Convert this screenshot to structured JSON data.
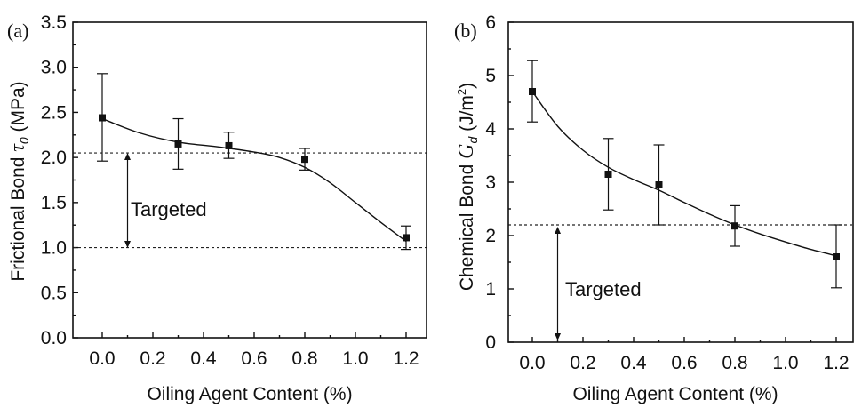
{
  "chart_data": [
    {
      "type": "scatter",
      "panel_label": "(a)",
      "xlabel": "Oiling Agent Content (%)",
      "ylabel_main": "Frictional Bond ",
      "ylabel_symbol": "τ",
      "ylabel_sub": "0",
      "ylabel_units": " (MPa)",
      "xlim": [
        -0.2,
        1.3
      ],
      "ylim": [
        0.0,
        3.5
      ],
      "xticks": [
        "0.0",
        "0.2",
        "0.4",
        "0.6",
        "0.8",
        "1.0",
        "1.2"
      ],
      "yticks": [
        "0.0",
        "0.5",
        "1.0",
        "1.5",
        "2.0",
        "2.5",
        "3.0",
        "3.5"
      ],
      "x": [
        0.0,
        0.3,
        0.5,
        0.8,
        1.2
      ],
      "y": [
        2.44,
        2.15,
        2.13,
        1.98,
        1.11
      ],
      "yerr_low": [
        1.96,
        1.87,
        1.99,
        1.86,
        0.98
      ],
      "yerr_high": [
        2.93,
        2.43,
        2.28,
        2.1,
        1.24
      ],
      "fit_curve": {
        "x": [
          0.0,
          0.15,
          0.3,
          0.45,
          0.6,
          0.7,
          0.8,
          0.9,
          1.0,
          1.1,
          1.2
        ],
        "y": [
          2.43,
          2.27,
          2.17,
          2.12,
          2.06,
          2.0,
          1.89,
          1.72,
          1.5,
          1.28,
          1.07
        ]
      },
      "reference_lines": [
        2.05,
        1.0
      ],
      "annotation": "Targeted",
      "annotation_arrow_x": 0.1
    },
    {
      "type": "scatter",
      "panel_label": "(b)",
      "xlabel": "Oiling Agent Content (%)",
      "ylabel_main": "Chemical Bond ",
      "ylabel_symbol": "G",
      "ylabel_sub": "d",
      "ylabel_units": " (J/m",
      "ylabel_sup": "2",
      "ylabel_close": ")",
      "xlim": [
        -0.2,
        1.3
      ],
      "ylim": [
        0,
        6
      ],
      "xticks": [
        "0.0",
        "0.2",
        "0.4",
        "0.6",
        "0.8",
        "1.0",
        "1.2"
      ],
      "yticks": [
        "0",
        "1",
        "2",
        "3",
        "4",
        "5",
        "6"
      ],
      "x": [
        0.0,
        0.3,
        0.5,
        0.8,
        1.2
      ],
      "y": [
        4.7,
        3.15,
        2.95,
        2.18,
        1.6
      ],
      "yerr_low": [
        4.13,
        2.48,
        2.2,
        1.8,
        1.02
      ],
      "yerr_high": [
        5.28,
        3.82,
        3.7,
        2.56,
        2.2
      ],
      "fit_curve": {
        "x": [
          0.0,
          0.1,
          0.2,
          0.3,
          0.4,
          0.5,
          0.6,
          0.7,
          0.8,
          0.9,
          1.0,
          1.1,
          1.2
        ],
        "y": [
          4.7,
          4.05,
          3.6,
          3.28,
          3.05,
          2.85,
          2.62,
          2.4,
          2.2,
          2.03,
          1.88,
          1.74,
          1.62
        ]
      },
      "reference_lines": [
        2.2
      ],
      "annotation": "Targeted",
      "annotation_arrow_x": 0.1
    }
  ]
}
